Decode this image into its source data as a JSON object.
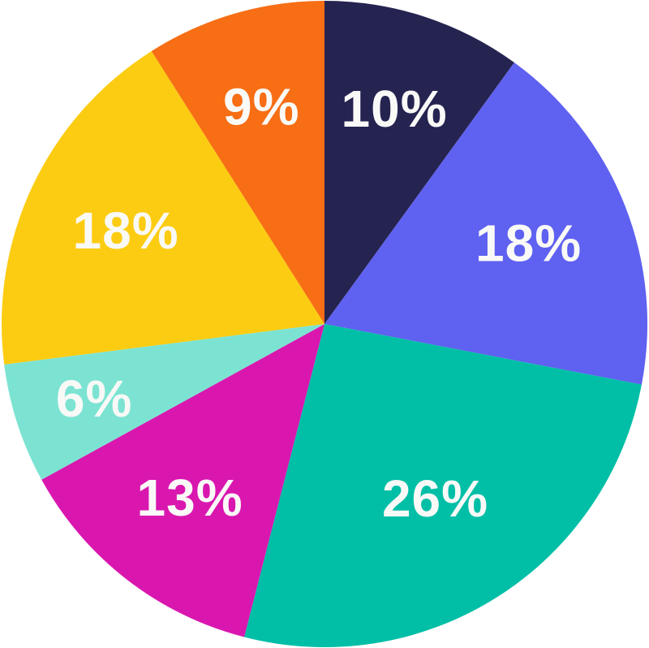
{
  "chart_data": {
    "type": "pie",
    "legend": "none",
    "start_angle_deg": 0,
    "direction": "clockwise",
    "label_color": "#F9F9F7",
    "slices": [
      {
        "label": "10%",
        "value": 10,
        "color": "#252350"
      },
      {
        "label": "18%",
        "value": 18,
        "color": "#5F61F0"
      },
      {
        "label": "26%",
        "value": 26,
        "color": "#00BFA6"
      },
      {
        "label": "13%",
        "value": 13,
        "color": "#D917AF"
      },
      {
        "label": "6%",
        "value": 6,
        "color": "#7CE3D2"
      },
      {
        "label": "18%",
        "value": 18,
        "color": "#FCCC12"
      },
      {
        "label": "9%",
        "value": 9,
        "color": "#F76E15"
      }
    ]
  }
}
